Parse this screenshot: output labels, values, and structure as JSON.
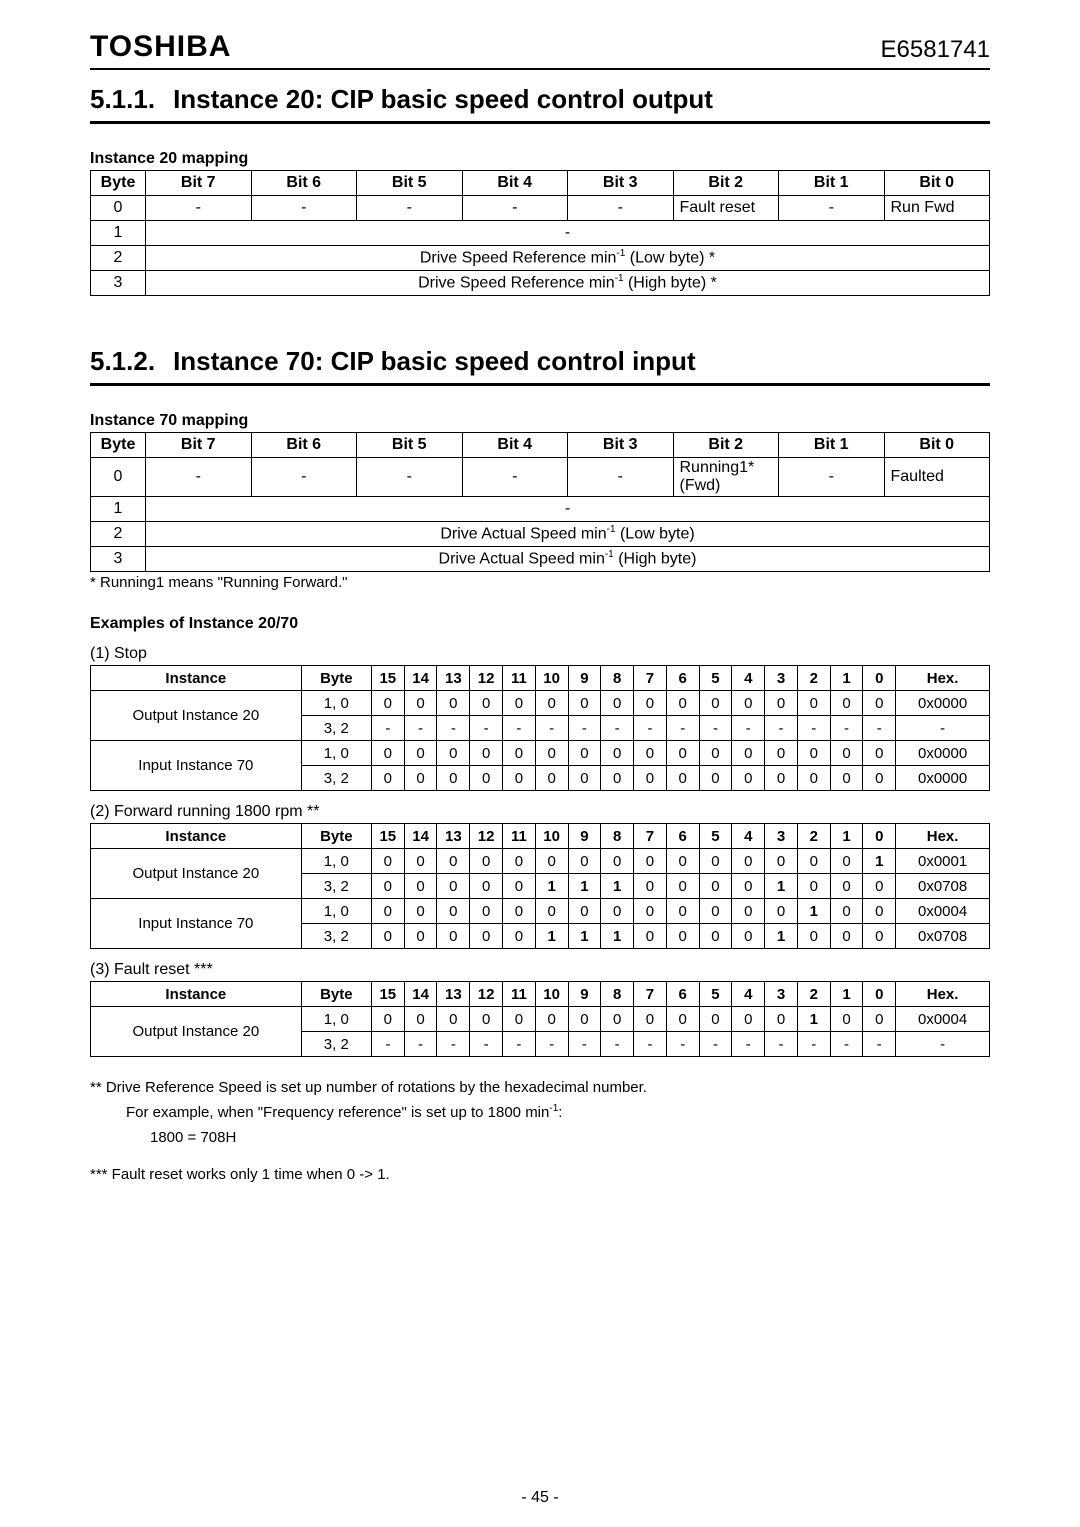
{
  "header": {
    "brand": "TOSHIBA",
    "docnum": "E6581741",
    "page_number": "- 45 -"
  },
  "sect511": {
    "num": "5.1.1.",
    "title": "Instance 20: CIP basic speed control output"
  },
  "sect512": {
    "num": "5.1.2.",
    "title": "Instance 70: CIP basic speed control input"
  },
  "map20": {
    "heading": "Instance 20 mapping",
    "cols": [
      "Byte",
      "Bit 7",
      "Bit 6",
      "Bit 5",
      "Bit 4",
      "Bit 3",
      "Bit 2",
      "Bit 1",
      "Bit 0"
    ],
    "row0": {
      "byte": "0",
      "b7": "-",
      "b6": "-",
      "b5": "-",
      "b4": "-",
      "b3": "-",
      "b2": "Fault reset",
      "b1": "-",
      "b0": "Run Fwd"
    },
    "row1": {
      "byte": "1",
      "span": "-"
    },
    "row2_prefix": "Drive Speed Reference min",
    "row2_suffix": " (Low byte) *",
    "row3_prefix": "Drive Speed Reference min",
    "row3_suffix": " (High byte) *",
    "row2": {
      "byte": "2"
    },
    "row3": {
      "byte": "3"
    }
  },
  "map70": {
    "heading": "Instance 70 mapping",
    "cols": [
      "Byte",
      "Bit 7",
      "Bit 6",
      "Bit 5",
      "Bit 4",
      "Bit 3",
      "Bit 2",
      "Bit 1",
      "Bit 0"
    ],
    "row0": {
      "byte": "0",
      "b7": "-",
      "b6": "-",
      "b5": "-",
      "b4": "-",
      "b3": "-",
      "b2": "Running1* (Fwd)",
      "b1": "-",
      "b0": "Faulted"
    },
    "row1": {
      "byte": "1",
      "span": "-"
    },
    "row2_prefix": "Drive Actual Speed min",
    "row2_suffix": " (Low byte)",
    "row3_prefix": "Drive Actual Speed min",
    "row3_suffix": " (High byte)",
    "row2": {
      "byte": "2"
    },
    "row3": {
      "byte": "3"
    },
    "footnote": "* Running1 means \"Running Forward.\""
  },
  "examples_heading": "Examples of Instance 20/70",
  "bit_cols": [
    "Instance",
    "Byte",
    "15",
    "14",
    "13",
    "12",
    "11",
    "10",
    "9",
    "8",
    "7",
    "6",
    "5",
    "4",
    "3",
    "2",
    "1",
    "0",
    "Hex."
  ],
  "ex1": {
    "label": "(1) Stop",
    "rows": [
      {
        "inst": "Output Instance 20",
        "inst_rowspan": 2,
        "byte": "1, 0",
        "bits": [
          "0",
          "0",
          "0",
          "0",
          "0",
          "0",
          "0",
          "0",
          "0",
          "0",
          "0",
          "0",
          "0",
          "0",
          "0",
          "0"
        ],
        "hex": "0x0000"
      },
      {
        "byte": "3, 2",
        "bits": [
          "-",
          "-",
          "-",
          "-",
          "-",
          "-",
          "-",
          "-",
          "-",
          "-",
          "-",
          "-",
          "-",
          "-",
          "-",
          "-"
        ],
        "hex": "-"
      },
      {
        "inst": "Input Instance 70",
        "inst_rowspan": 2,
        "byte": "1, 0",
        "bits": [
          "0",
          "0",
          "0",
          "0",
          "0",
          "0",
          "0",
          "0",
          "0",
          "0",
          "0",
          "0",
          "0",
          "0",
          "0",
          "0"
        ],
        "hex": "0x0000"
      },
      {
        "byte": "3, 2",
        "bits": [
          "0",
          "0",
          "0",
          "0",
          "0",
          "0",
          "0",
          "0",
          "0",
          "0",
          "0",
          "0",
          "0",
          "0",
          "0",
          "0"
        ],
        "hex": "0x0000"
      }
    ]
  },
  "ex2": {
    "label": "(2) Forward running 1800 rpm **",
    "rows": [
      {
        "inst": "Output Instance 20",
        "inst_rowspan": 2,
        "byte": "1, 0",
        "bits": [
          "0",
          "0",
          "0",
          "0",
          "0",
          "0",
          "0",
          "0",
          "0",
          "0",
          "0",
          "0",
          "0",
          "0",
          "0",
          "1"
        ],
        "hex": "0x0001"
      },
      {
        "byte": "3, 2",
        "bits": [
          "0",
          "0",
          "0",
          "0",
          "0",
          "1",
          "1",
          "1",
          "0",
          "0",
          "0",
          "0",
          "1",
          "0",
          "0",
          "0"
        ],
        "hex": "0x0708"
      },
      {
        "inst": "Input Instance 70",
        "inst_rowspan": 2,
        "byte": "1, 0",
        "bits": [
          "0",
          "0",
          "0",
          "0",
          "0",
          "0",
          "0",
          "0",
          "0",
          "0",
          "0",
          "0",
          "0",
          "1",
          "0",
          "0"
        ],
        "hex": "0x0004"
      },
      {
        "byte": "3, 2",
        "bits": [
          "0",
          "0",
          "0",
          "0",
          "0",
          "1",
          "1",
          "1",
          "0",
          "0",
          "0",
          "0",
          "1",
          "0",
          "0",
          "0"
        ],
        "hex": "0x0708"
      }
    ]
  },
  "ex3": {
    "label": "(3) Fault reset ***",
    "rows": [
      {
        "inst": "Output Instance 20",
        "inst_rowspan": 2,
        "byte": "1, 0",
        "bits": [
          "0",
          "0",
          "0",
          "0",
          "0",
          "0",
          "0",
          "0",
          "0",
          "0",
          "0",
          "0",
          "0",
          "1",
          "0",
          "0"
        ],
        "hex": "0x0004"
      },
      {
        "byte": "3, 2",
        "bits": [
          "-",
          "-",
          "-",
          "-",
          "-",
          "-",
          "-",
          "-",
          "-",
          "-",
          "-",
          "-",
          "-",
          "-",
          "-",
          "-"
        ],
        "hex": "-"
      }
    ]
  },
  "notes": {
    "n2a_prefix": "** Drive Reference Speed is set up number of rotations by the hexadecimal number.",
    "n2b_prefix": "For example, when \"Frequency reference\" is set up to 1800 min",
    "n2b_suffix": ":",
    "n2c": "1800 = 708H",
    "n3": "*** Fault reset works only 1 time when 0 -> 1."
  }
}
